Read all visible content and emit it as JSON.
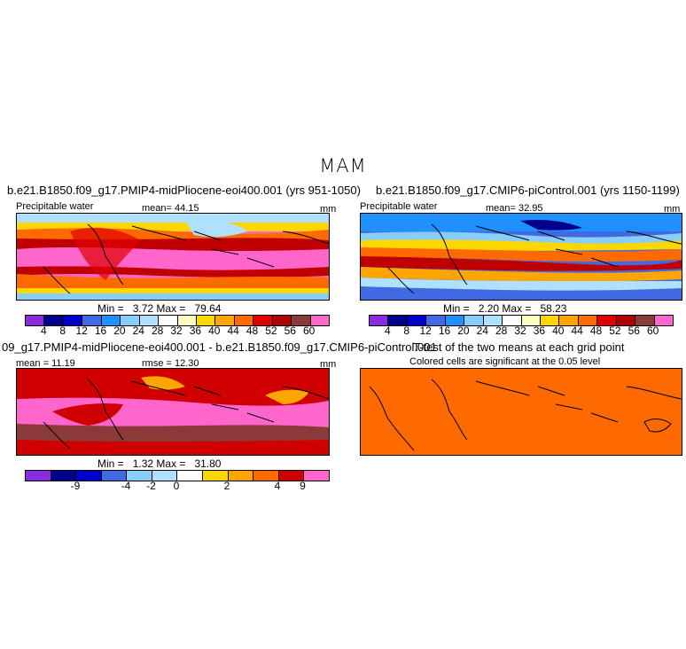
{
  "season": "MAM",
  "panel1": {
    "title": "b.e21.B1850.f09_g17.PMIP4-midPliocene-eoi400.001 (yrs 951-1050)",
    "variable": "Precipitable water",
    "mean_label": "mean=",
    "mean_value": "44.15",
    "units": "mm",
    "min_label": "Min =",
    "min_value": "3.72",
    "max_label": "Max =",
    "max_value": "79.64"
  },
  "panel2": {
    "title": "b.e21.B1850.f09_g17.CMIP6-piControl.001 (yrs 1150-1199)",
    "variable": "Precipitable water",
    "mean_label": "mean=",
    "mean_value": "32.95",
    "units": "mm",
    "min_label": "Min =",
    "min_value": "2.20",
    "max_label": "Max =",
    "max_value": "58.23"
  },
  "panel3": {
    "title": "09_g17.PMIP4-midPliocene-eoi400.001 - b.e21.B1850.f09_g17.CMIP6-piControl.001",
    "mean_label": "mean =",
    "mean_value": "11.19",
    "rmse_label": "rmse =",
    "rmse_value": "12.30",
    "units": "mm",
    "min_label": "Min =",
    "min_value": "1.32",
    "max_label": "Max =",
    "max_value": "31.80"
  },
  "panel4": {
    "title": "T-test of the two means at each grid point",
    "subtitle": "Colored cells are significant at the 0.05 level",
    "fill_color": "#ff6a00"
  },
  "colorbar_abs": {
    "colors": [
      "#8a2be2",
      "#00008b",
      "#0000cd",
      "#4169e1",
      "#1e90ff",
      "#87cefa",
      "#b0e0ff",
      "#ffffff",
      "#ffffc0",
      "#ffd700",
      "#ffa500",
      "#ff6a00",
      "#e00000",
      "#b00000",
      "#8b3a3a",
      "#ff66cc"
    ],
    "ticks": [
      "4",
      "8",
      "12",
      "16",
      "20",
      "24",
      "28",
      "32",
      "36",
      "40",
      "44",
      "48",
      "52",
      "56",
      "60"
    ]
  },
  "colorbar_diff": {
    "colors": [
      "#8a2be2",
      "#00008b",
      "#0000cd",
      "#4169e1",
      "#87cefa",
      "#b0e0ff",
      "#ffffff",
      "#ffd700",
      "#ffa500",
      "#ff6a00",
      "#d00000",
      "#ff66cc"
    ],
    "ticks": [
      "-9",
      "-4",
      "-2",
      "0",
      "2",
      "4",
      "9"
    ]
  }
}
